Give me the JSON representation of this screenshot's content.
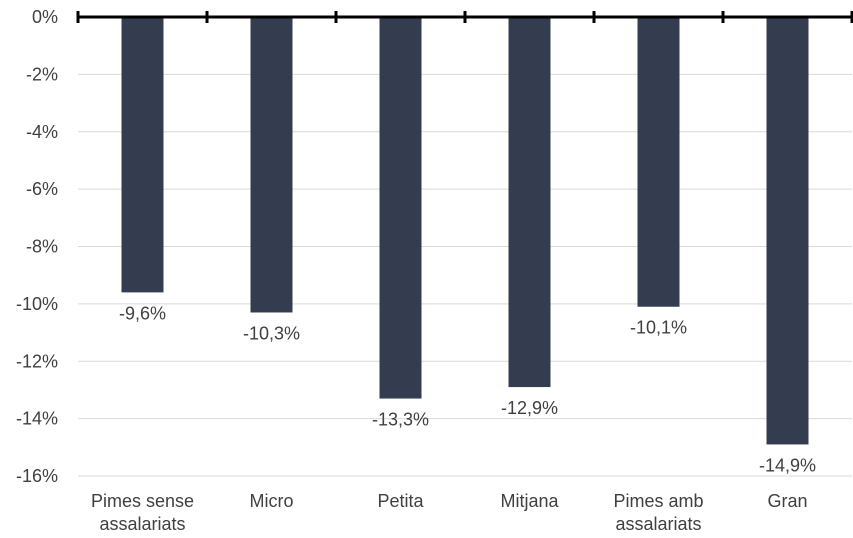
{
  "chart_data": {
    "type": "bar",
    "categories": [
      [
        "Pimes sense",
        "assalariats"
      ],
      [
        "Micro"
      ],
      [
        "Petita"
      ],
      [
        "Mitjana"
      ],
      [
        "Pimes amb",
        "assalariats"
      ],
      [
        "Gran"
      ]
    ],
    "values": [
      -9.6,
      -10.3,
      -13.3,
      -12.9,
      -10.1,
      -14.9
    ],
    "data_labels": [
      "-9,6%",
      "-10,3%",
      "-13,3%",
      "-12,9%",
      "-10,1%",
      "-14,9%"
    ],
    "ylim": [
      -16,
      0
    ],
    "yticks": [
      0,
      -2,
      -4,
      -6,
      -8,
      -10,
      -12,
      -14,
      -16
    ],
    "ytick_labels": [
      "0%",
      "-2%",
      "-4%",
      "-6%",
      "-8%",
      "-10%",
      "-12%",
      "-14%",
      "-16%"
    ],
    "grid": true,
    "colors": {
      "bar": "#333d4f",
      "axis": "#000000",
      "grid": "#d9d9d9",
      "text": "#404040"
    }
  }
}
